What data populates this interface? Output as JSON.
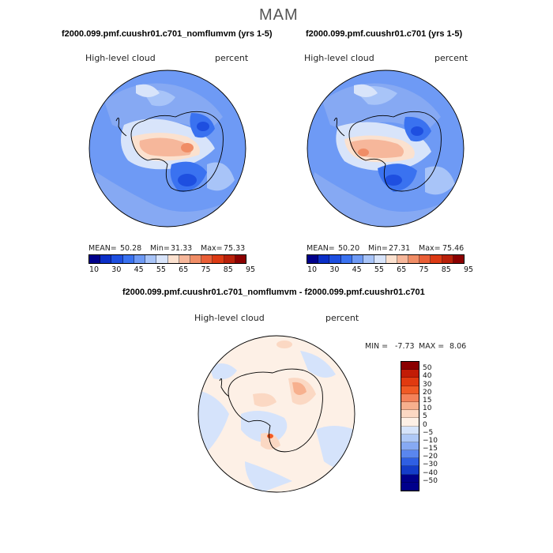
{
  "figure": {
    "season": "MAM",
    "colors": {
      "abs_palette": [
        "#00008b",
        "#0b2fc7",
        "#1e4fe0",
        "#3a72f0",
        "#6e9af5",
        "#a8c4f8",
        "#d8e4fa",
        "#fbe1cf",
        "#f6b79b",
        "#f08d66",
        "#ea5f37",
        "#dc3a14",
        "#b9200a",
        "#8b0000"
      ],
      "diff_palette": [
        "#8b0000",
        "#c21c06",
        "#e13a10",
        "#f05a25",
        "#f4825a",
        "#f7b08e",
        "#fbd8c3",
        "#fdf0e6",
        "#d5e3fb",
        "#aec8f7",
        "#86a9f3",
        "#5a86ee",
        "#2f5fe3",
        "#143cc9",
        "#00008b"
      ]
    },
    "panels": [
      {
        "id": "left",
        "title": "f2000.099.pmf.cuushr01.c701_nomflumvm (yrs 1-5)",
        "field_label": "High-level cloud",
        "units": "percent",
        "mean_label": "MEAN=",
        "mean": "50.28",
        "min_label": "Min=",
        "min": "31.33",
        "max_label": "Max=",
        "max": "75.33",
        "colorbar_ticks": [
          "10",
          "30",
          "45",
          "55",
          "65",
          "75",
          "85",
          "95"
        ]
      },
      {
        "id": "right",
        "title": "f2000.099.pmf.cuushr01.c701 (yrs 1-5)",
        "field_label": "High-level cloud",
        "units": "percent",
        "mean_label": "MEAN=",
        "mean": "50.20",
        "min_label": "Min=",
        "min": "27.31",
        "max_label": "Max=",
        "max": "75.46",
        "colorbar_ticks": [
          "10",
          "30",
          "45",
          "55",
          "65",
          "75",
          "85",
          "95"
        ]
      }
    ],
    "diff": {
      "title": "f2000.099.pmf.cuushr01.c701_nomflumvm - f2000.099.pmf.cuushr01.c701",
      "field_label": "High-level cloud",
      "units": "percent",
      "min_label": "MIN =",
      "min": "-7.73",
      "max_label": "MAX =",
      "max": "8.06",
      "colorbar_ticks": [
        "50",
        "40",
        "30",
        "20",
        "15",
        "10",
        "5",
        "0",
        "−5",
        "−10",
        "−15",
        "−20",
        "−30",
        "−40",
        "−50"
      ]
    }
  },
  "chart_data": [
    {
      "type": "heatmap",
      "title": "f2000.099.pmf.cuushr01.c701_nomflumvm (yrs 1-5)",
      "variable": "High-level cloud",
      "units": "percent",
      "projection": "south polar stereographic",
      "stats": {
        "mean": 50.28,
        "min": 31.33,
        "max": 75.33
      },
      "contour_levels": [
        10,
        30,
        45,
        55,
        65,
        75,
        85,
        95
      ]
    },
    {
      "type": "heatmap",
      "title": "f2000.099.pmf.cuushr01.c701 (yrs 1-5)",
      "variable": "High-level cloud",
      "units": "percent",
      "projection": "south polar stereographic",
      "stats": {
        "mean": 50.2,
        "min": 27.31,
        "max": 75.46
      },
      "contour_levels": [
        10,
        30,
        45,
        55,
        65,
        75,
        85,
        95
      ]
    },
    {
      "type": "heatmap",
      "title": "f2000.099.pmf.cuushr01.c701_nomflumvm - f2000.099.pmf.cuushr01.c701",
      "variable": "High-level cloud",
      "units": "percent",
      "projection": "south polar stereographic",
      "stats": {
        "min": -7.73,
        "max": 8.06
      },
      "contour_levels": [
        -50,
        -40,
        -30,
        -20,
        -15,
        -10,
        -5,
        0,
        5,
        10,
        15,
        20,
        30,
        40,
        50
      ]
    }
  ]
}
